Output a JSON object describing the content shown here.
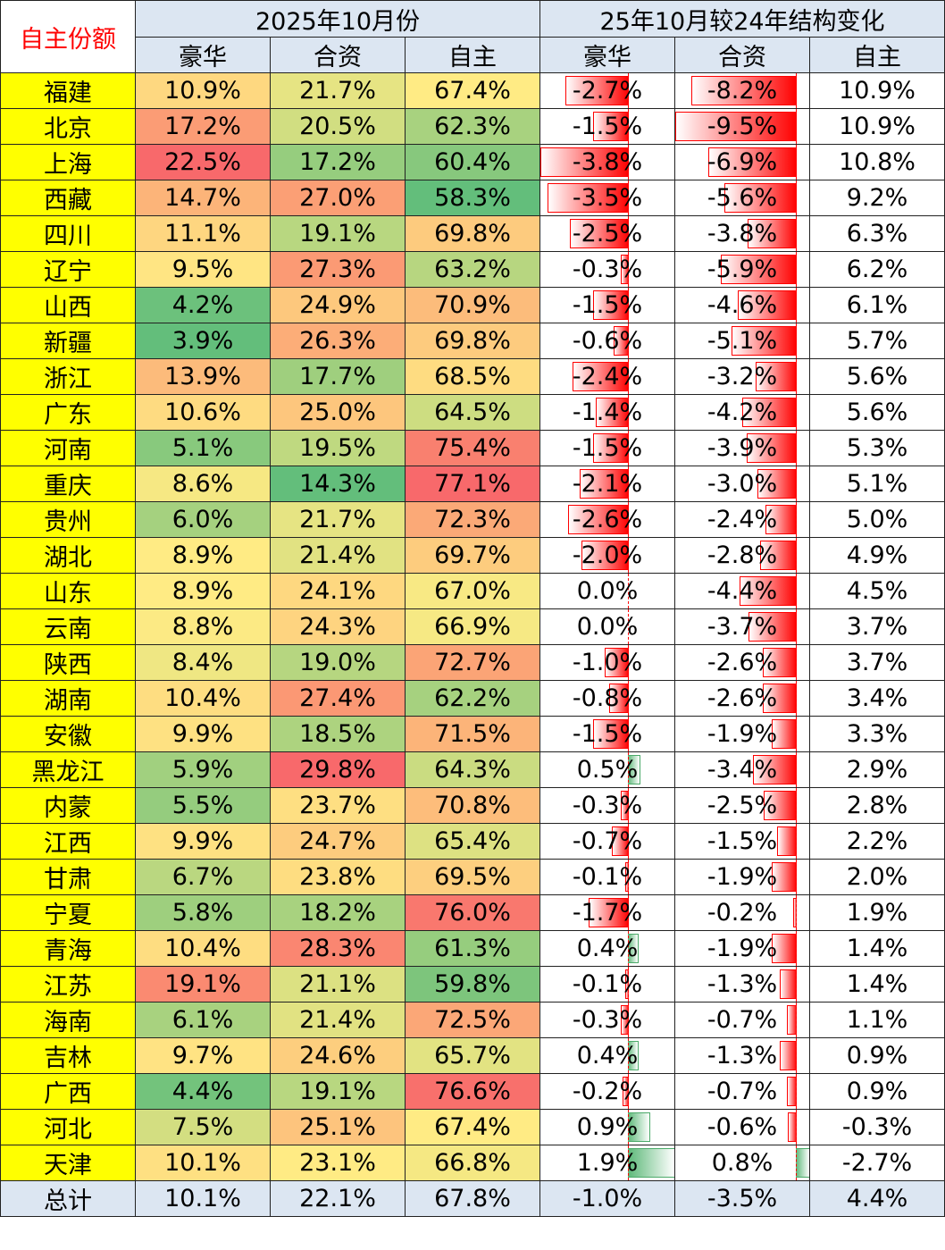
{
  "header": {
    "corner_label": "自主份额",
    "group1_title": "2025年10月份",
    "group2_title": "25年10月较24年结构变化",
    "col_luxury": "豪华",
    "col_jv": "合资",
    "col_domestic": "自主"
  },
  "colors": {
    "header_bg": "#dce6f2",
    "province_bg": "#ffff00",
    "corner_text": "#ff0000",
    "bar_negative": "#ff0000",
    "bar_positive": "#5cb878",
    "scale_low": "#63be7b",
    "scale_mid": "#ffeb84",
    "scale_high": "#f8696b"
  },
  "rows": [
    {
      "province": "福建",
      "luxury": "10.9%",
      "jv": "21.7%",
      "domestic": "67.4%",
      "d_luxury": "-2.7%",
      "d_jv": "-8.2%",
      "d_domestic": "10.9%"
    },
    {
      "province": "北京",
      "luxury": "17.2%",
      "jv": "20.5%",
      "domestic": "62.3%",
      "d_luxury": "-1.5%",
      "d_jv": "-9.5%",
      "d_domestic": "10.9%"
    },
    {
      "province": "上海",
      "luxury": "22.5%",
      "jv": "17.2%",
      "domestic": "60.4%",
      "d_luxury": "-3.8%",
      "d_jv": "-6.9%",
      "d_domestic": "10.8%"
    },
    {
      "province": "西藏",
      "luxury": "14.7%",
      "jv": "27.0%",
      "domestic": "58.3%",
      "d_luxury": "-3.5%",
      "d_jv": "-5.6%",
      "d_domestic": "9.2%"
    },
    {
      "province": "四川",
      "luxury": "11.1%",
      "jv": "19.1%",
      "domestic": "69.8%",
      "d_luxury": "-2.5%",
      "d_jv": "-3.8%",
      "d_domestic": "6.3%"
    },
    {
      "province": "辽宁",
      "luxury": "9.5%",
      "jv": "27.3%",
      "domestic": "63.2%",
      "d_luxury": "-0.3%",
      "d_jv": "-5.9%",
      "d_domestic": "6.2%"
    },
    {
      "province": "山西",
      "luxury": "4.2%",
      "jv": "24.9%",
      "domestic": "70.9%",
      "d_luxury": "-1.5%",
      "d_jv": "-4.6%",
      "d_domestic": "6.1%"
    },
    {
      "province": "新疆",
      "luxury": "3.9%",
      "jv": "26.3%",
      "domestic": "69.8%",
      "d_luxury": "-0.6%",
      "d_jv": "-5.1%",
      "d_domestic": "5.7%"
    },
    {
      "province": "浙江",
      "luxury": "13.9%",
      "jv": "17.7%",
      "domestic": "68.5%",
      "d_luxury": "-2.4%",
      "d_jv": "-3.2%",
      "d_domestic": "5.6%"
    },
    {
      "province": "广东",
      "luxury": "10.6%",
      "jv": "25.0%",
      "domestic": "64.5%",
      "d_luxury": "-1.4%",
      "d_jv": "-4.2%",
      "d_domestic": "5.6%"
    },
    {
      "province": "河南",
      "luxury": "5.1%",
      "jv": "19.5%",
      "domestic": "75.4%",
      "d_luxury": "-1.5%",
      "d_jv": "-3.9%",
      "d_domestic": "5.3%"
    },
    {
      "province": "重庆",
      "luxury": "8.6%",
      "jv": "14.3%",
      "domestic": "77.1%",
      "d_luxury": "-2.1%",
      "d_jv": "-3.0%",
      "d_domestic": "5.1%"
    },
    {
      "province": "贵州",
      "luxury": "6.0%",
      "jv": "21.7%",
      "domestic": "72.3%",
      "d_luxury": "-2.6%",
      "d_jv": "-2.4%",
      "d_domestic": "5.0%"
    },
    {
      "province": "湖北",
      "luxury": "8.9%",
      "jv": "21.4%",
      "domestic": "69.7%",
      "d_luxury": "-2.0%",
      "d_jv": "-2.8%",
      "d_domestic": "4.9%"
    },
    {
      "province": "山东",
      "luxury": "8.9%",
      "jv": "24.1%",
      "domestic": "67.0%",
      "d_luxury": "0.0%",
      "d_jv": "-4.4%",
      "d_domestic": "4.5%"
    },
    {
      "province": "云南",
      "luxury": "8.8%",
      "jv": "24.3%",
      "domestic": "66.9%",
      "d_luxury": "0.0%",
      "d_jv": "-3.7%",
      "d_domestic": "3.7%"
    },
    {
      "province": "陕西",
      "luxury": "8.4%",
      "jv": "19.0%",
      "domestic": "72.7%",
      "d_luxury": "-1.0%",
      "d_jv": "-2.6%",
      "d_domestic": "3.7%"
    },
    {
      "province": "湖南",
      "luxury": "10.4%",
      "jv": "27.4%",
      "domestic": "62.2%",
      "d_luxury": "-0.8%",
      "d_jv": "-2.6%",
      "d_domestic": "3.4%"
    },
    {
      "province": "安徽",
      "luxury": "9.9%",
      "jv": "18.5%",
      "domestic": "71.5%",
      "d_luxury": "-1.5%",
      "d_jv": "-1.9%",
      "d_domestic": "3.3%"
    },
    {
      "province": "黑龙江",
      "luxury": "5.9%",
      "jv": "29.8%",
      "domestic": "64.3%",
      "d_luxury": "0.5%",
      "d_jv": "-3.4%",
      "d_domestic": "2.9%"
    },
    {
      "province": "内蒙",
      "luxury": "5.5%",
      "jv": "23.7%",
      "domestic": "70.8%",
      "d_luxury": "-0.3%",
      "d_jv": "-2.5%",
      "d_domestic": "2.8%"
    },
    {
      "province": "江西",
      "luxury": "9.9%",
      "jv": "24.7%",
      "domestic": "65.4%",
      "d_luxury": "-0.7%",
      "d_jv": "-1.5%",
      "d_domestic": "2.2%"
    },
    {
      "province": "甘肃",
      "luxury": "6.7%",
      "jv": "23.8%",
      "domestic": "69.5%",
      "d_luxury": "-0.1%",
      "d_jv": "-1.9%",
      "d_domestic": "2.0%"
    },
    {
      "province": "宁夏",
      "luxury": "5.8%",
      "jv": "18.2%",
      "domestic": "76.0%",
      "d_luxury": "-1.7%",
      "d_jv": "-0.2%",
      "d_domestic": "1.9%"
    },
    {
      "province": "青海",
      "luxury": "10.4%",
      "jv": "28.3%",
      "domestic": "61.3%",
      "d_luxury": "0.4%",
      "d_jv": "-1.9%",
      "d_domestic": "1.4%"
    },
    {
      "province": "江苏",
      "luxury": "19.1%",
      "jv": "21.1%",
      "domestic": "59.8%",
      "d_luxury": "-0.1%",
      "d_jv": "-1.3%",
      "d_domestic": "1.4%"
    },
    {
      "province": "海南",
      "luxury": "6.1%",
      "jv": "21.4%",
      "domestic": "72.5%",
      "d_luxury": "-0.3%",
      "d_jv": "-0.7%",
      "d_domestic": "1.1%"
    },
    {
      "province": "吉林",
      "luxury": "9.7%",
      "jv": "24.6%",
      "domestic": "65.7%",
      "d_luxury": "0.4%",
      "d_jv": "-1.3%",
      "d_domestic": "0.9%"
    },
    {
      "province": "广西",
      "luxury": "4.4%",
      "jv": "19.1%",
      "domestic": "76.6%",
      "d_luxury": "-0.2%",
      "d_jv": "-0.7%",
      "d_domestic": "0.9%"
    },
    {
      "province": "河北",
      "luxury": "7.5%",
      "jv": "25.1%",
      "domestic": "67.4%",
      "d_luxury": "0.9%",
      "d_jv": "-0.6%",
      "d_domestic": "-0.3%"
    },
    {
      "province": "天津",
      "luxury": "10.1%",
      "jv": "23.1%",
      "domestic": "66.8%",
      "d_luxury": "1.9%",
      "d_jv": "0.8%",
      "d_domestic": "-2.7%"
    }
  ],
  "total": {
    "province": "总计",
    "luxury": "10.1%",
    "jv": "22.1%",
    "domestic": "67.8%",
    "d_luxury": "-1.0%",
    "d_jv": "-3.5%",
    "d_domestic": "4.4%"
  }
}
